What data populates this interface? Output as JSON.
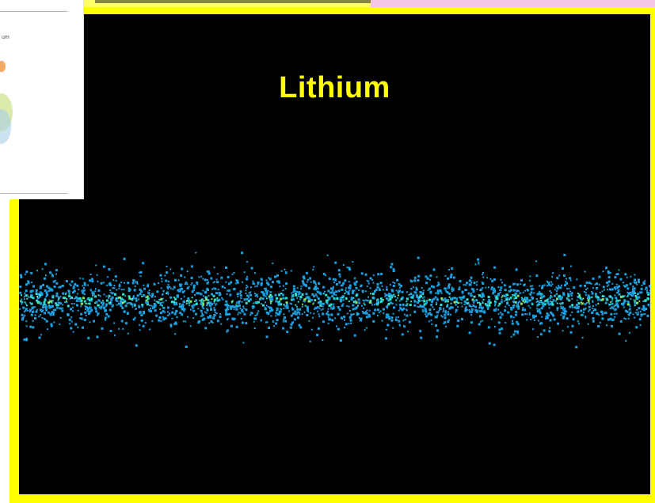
{
  "slide": {
    "title": "Lithium",
    "inset_label": "um"
  },
  "colors": {
    "frame": "#ffff00",
    "background": "#000000",
    "title": "#ffff00",
    "dots_primary": "#1a9fe0",
    "dots_bright": "#2ee0d0",
    "dots_hot": "#8ee05a"
  },
  "icons": {
    "inset": "orbital-diagram-icon"
  }
}
